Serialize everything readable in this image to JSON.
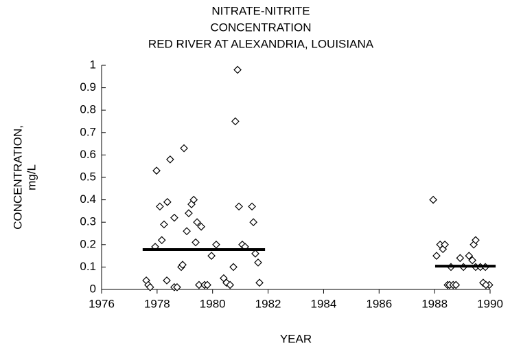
{
  "chart_data": {
    "type": "scatter",
    "title": [
      "NITRATE-NITRITE",
      "CONCENTRATION",
      "RED RIVER AT ALEXANDRIA, LOUISIANA"
    ],
    "xlabel": "YEAR",
    "ylabel": [
      "CONCENTRATION,",
      "mg/L"
    ],
    "xlim": [
      1976,
      1990
    ],
    "xticks": [
      1976,
      1978,
      1980,
      1982,
      1984,
      1986,
      1988,
      1990
    ],
    "ylim": [
      0,
      1
    ],
    "yticks": [
      0,
      0.1,
      0.2,
      0.3,
      0.4,
      0.5,
      0.6,
      0.7,
      0.8,
      0.9,
      1
    ],
    "series": [
      {
        "color": "#000000",
        "x": [
          1977.61,
          1977.68,
          1977.75,
          1977.93,
          1977.98,
          1978.1,
          1978.17,
          1978.25,
          1978.37,
          1978.35,
          1978.47,
          1978.62,
          1978.62,
          1978.72,
          1978.87,
          1978.92,
          1978.97,
          1979.07,
          1979.14,
          1979.24,
          1979.32,
          1979.39,
          1979.44,
          1979.59,
          1979.51,
          1979.71,
          1979.81,
          1979.96,
          1980.13,
          1980.4,
          1980.5,
          1980.63,
          1980.75,
          1980.82,
          1980.9,
          1980.95,
          1981.07,
          1981.17,
          1981.42,
          1981.47,
          1981.54,
          1981.64,
          1981.69,
          1987.95,
          1988.07,
          1988.2,
          1988.3,
          1988.37,
          1988.47,
          1988.54,
          1988.59,
          1988.67,
          1988.77,
          1988.92,
          1989.04,
          1989.24,
          1989.36,
          1989.41,
          1989.48,
          1989.48,
          1989.65,
          1989.75,
          1989.83,
          1989.97,
          1989.85
        ],
        "values": [
          0.04,
          0.02,
          0.01,
          0.19,
          0.53,
          0.37,
          0.22,
          0.29,
          0.39,
          0.04,
          0.58,
          0.32,
          0.01,
          0.01,
          0.1,
          0.11,
          0.63,
          0.26,
          0.34,
          0.38,
          0.4,
          0.21,
          0.3,
          0.28,
          0.02,
          0.02,
          0.02,
          0.15,
          0.2,
          0.05,
          0.03,
          0.02,
          0.1,
          0.75,
          0.98,
          0.37,
          0.2,
          0.19,
          0.37,
          0.3,
          0.16,
          0.12,
          0.03,
          0.4,
          0.15,
          0.2,
          0.18,
          0.2,
          0.02,
          0.02,
          0.1,
          0.02,
          0.02,
          0.14,
          0.1,
          0.15,
          0.13,
          0.2,
          0.22,
          0.1,
          0.1,
          0.03,
          0.1,
          0.02,
          0.02
        ]
      }
    ],
    "lines": [
      {
        "color": "#000000",
        "x": [
          1977.48,
          1981.89
        ],
        "values": [
          0.178,
          0.178
        ]
      },
      {
        "color": "#000000",
        "x": [
          1988.02,
          1990.2
        ],
        "values": [
          0.104,
          0.104
        ]
      }
    ]
  }
}
